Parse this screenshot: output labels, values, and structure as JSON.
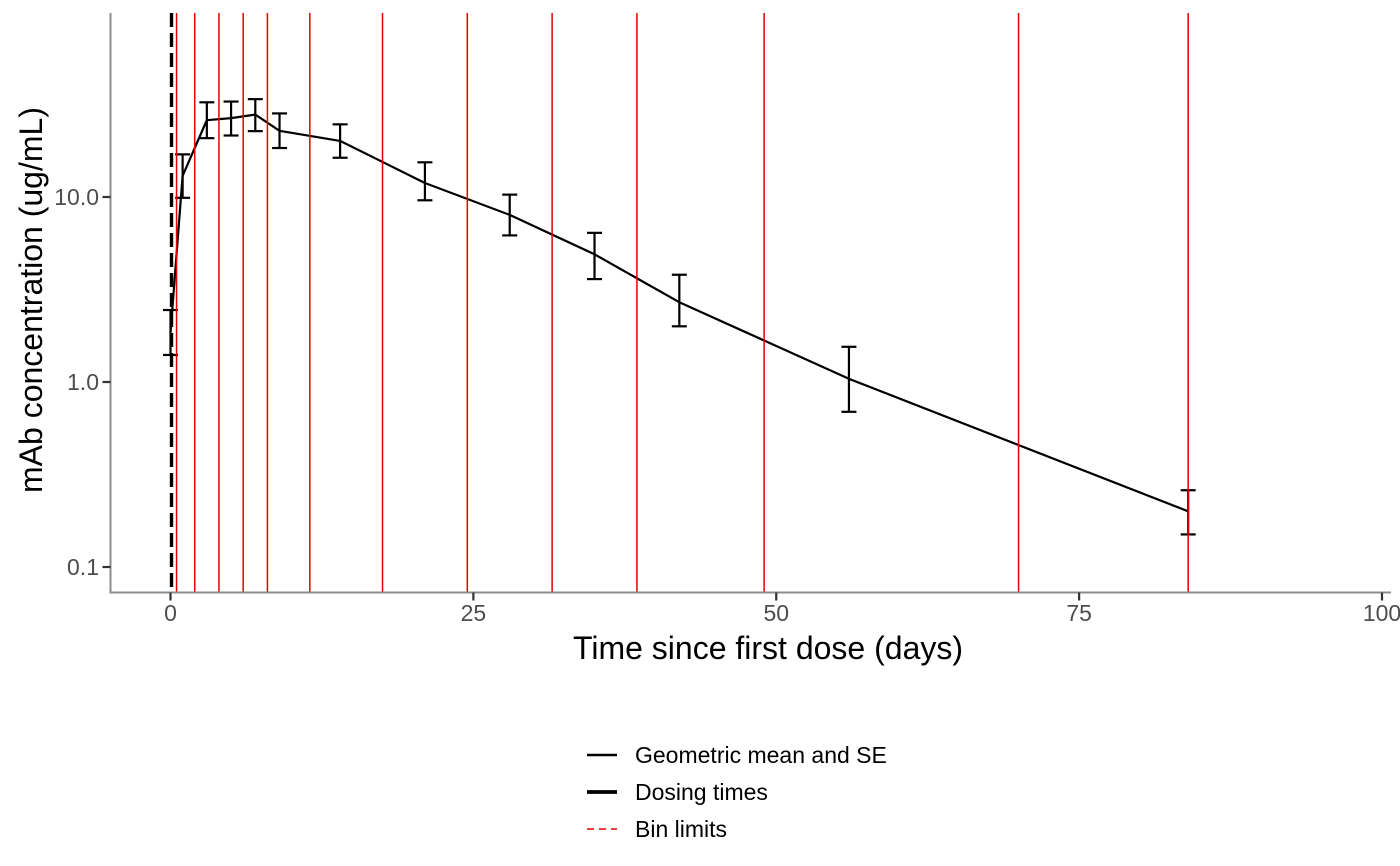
{
  "chart_data": {
    "type": "line",
    "title": "",
    "xlabel": "Time since first dose (days)",
    "ylabel": "mAb concentration (ug/mL)",
    "x_axis": {
      "ticks": [
        0,
        25,
        50,
        75,
        100
      ],
      "tick_labels": [
        "0",
        "25",
        "50",
        "75",
        "100"
      ],
      "range_days": [
        -5,
        100.8
      ],
      "scale": "linear"
    },
    "y_axis": {
      "ticks": [
        0.1,
        1.0,
        10.0
      ],
      "tick_labels": [
        "0.1",
        "1.0",
        "10.0"
      ],
      "range_ug_ml": [
        0.074,
        99
      ],
      "scale": "log10"
    },
    "grid": "off",
    "series": [
      {
        "name": "Geometric mean and SE",
        "style": "solid line with SE error bars",
        "color": "#000000",
        "points": [
          {
            "day": 0,
            "gm": 1.85,
            "se_low": 1.4,
            "se_high": 2.45
          },
          {
            "day": 1,
            "gm": 13.0,
            "se_low": 9.9,
            "se_high": 17.0
          },
          {
            "day": 3,
            "gm": 26.0,
            "se_low": 20.8,
            "se_high": 32.5
          },
          {
            "day": 5,
            "gm": 26.7,
            "se_low": 21.5,
            "se_high": 32.8
          },
          {
            "day": 7,
            "gm": 27.9,
            "se_low": 22.7,
            "se_high": 33.8
          },
          {
            "day": 9,
            "gm": 22.8,
            "se_low": 18.4,
            "se_high": 28.3
          },
          {
            "day": 14,
            "gm": 20.1,
            "se_low": 16.3,
            "se_high": 24.7
          },
          {
            "day": 21,
            "gm": 11.9,
            "se_low": 9.6,
            "se_high": 15.4
          },
          {
            "day": 28,
            "gm": 8.0,
            "se_low": 6.2,
            "se_high": 10.3
          },
          {
            "day": 35,
            "gm": 4.9,
            "se_low": 3.6,
            "se_high": 6.4
          },
          {
            "day": 42,
            "gm": 2.7,
            "se_low": 2.0,
            "se_high": 3.8
          },
          {
            "day": 56,
            "gm": 1.04,
            "se_low": 0.69,
            "se_high": 1.55
          },
          {
            "day": 84,
            "gm": 0.2,
            "se_low": 0.15,
            "se_high": 0.26
          }
        ]
      }
    ],
    "dosing_times_days": [
      0
    ],
    "bin_limits_days": [
      0.5,
      2,
      4,
      6,
      8,
      11.5,
      17.5,
      24.5,
      31.5,
      38.5,
      49,
      70,
      84
    ],
    "legend": {
      "position": "bottom-center",
      "entries": [
        {
          "label": "Geometric mean and SE",
          "line_style": "solid",
          "color": "#000000"
        },
        {
          "label": "Dosing times",
          "line_style": "solid-thick",
          "color": "#000000"
        },
        {
          "label": "Bin limits",
          "line_style": "dashed",
          "color": "#E60000"
        }
      ]
    },
    "colors": {
      "series_line": "#000000",
      "dosing_line": "#000000",
      "bin_limit_line": "#E60000",
      "axis_line": "#8C8C8C",
      "tick_mark": "#333333",
      "tick_label": "#4D4D4D",
      "axis_title": "#000000",
      "background": "#FFFFFF"
    }
  }
}
